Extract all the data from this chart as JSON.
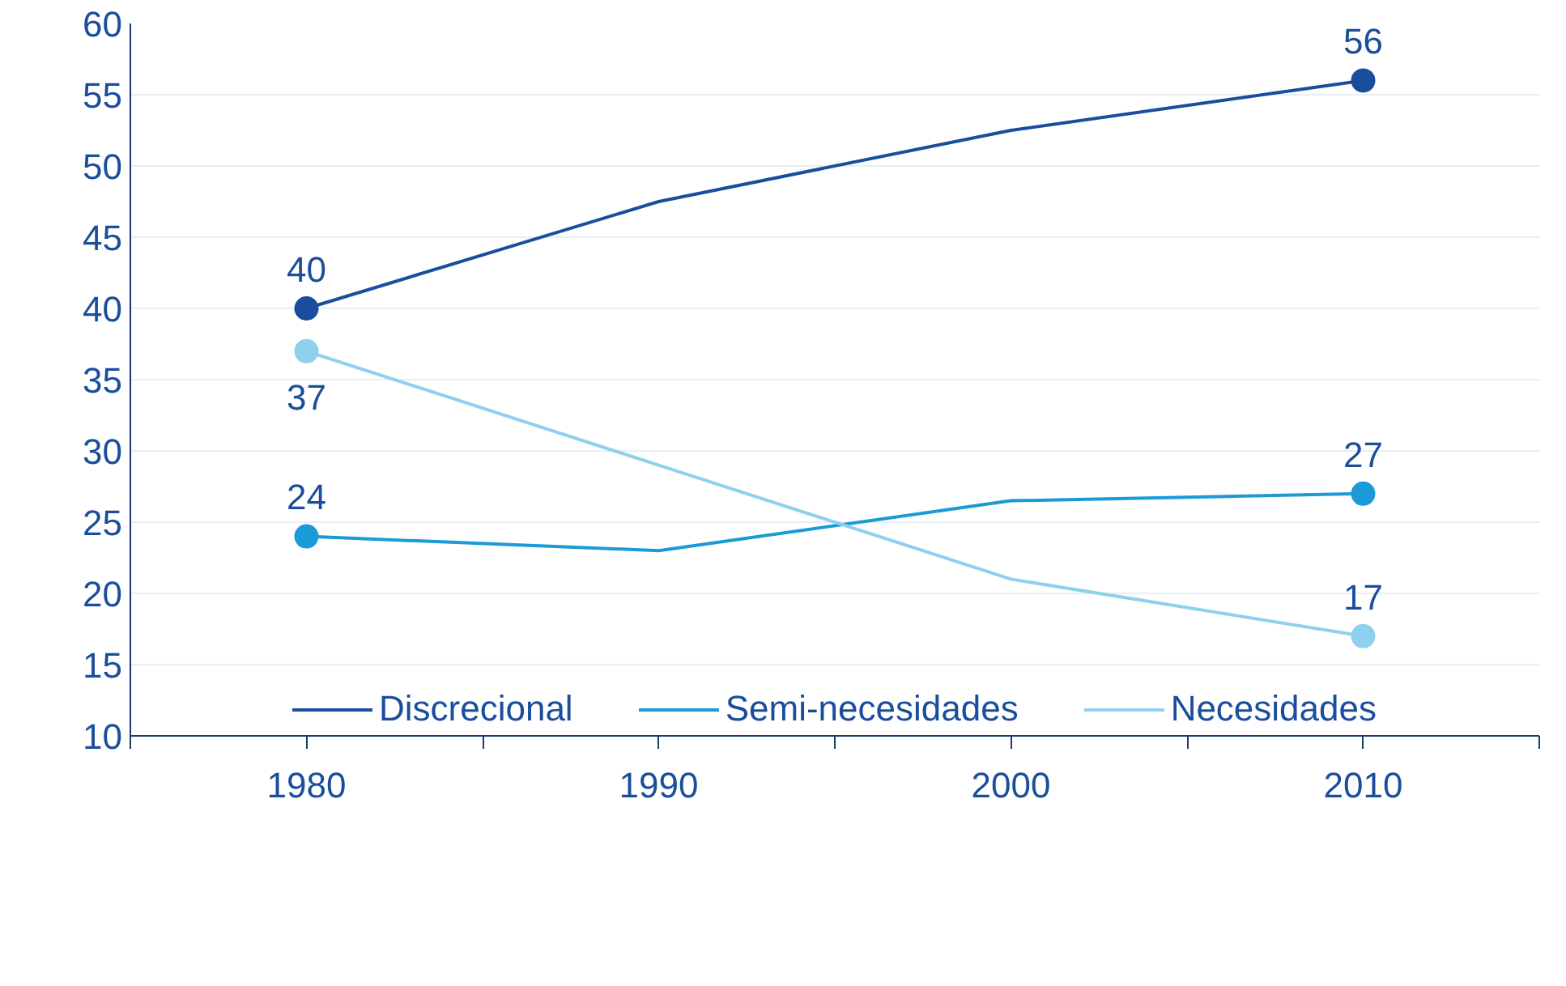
{
  "chart_data": {
    "type": "line",
    "categories": [
      "1980",
      "1990",
      "2000",
      "2010"
    ],
    "series": [
      {
        "name": "Discrecional",
        "color": "#1a4e9c",
        "values": [
          40,
          47.5,
          52.5,
          56
        ],
        "value_labels": [
          "40",
          null,
          null,
          "56"
        ]
      },
      {
        "name": "Semi-necesidades",
        "color": "#1a9ad6",
        "values": [
          24,
          23,
          26.5,
          27
        ],
        "value_labels": [
          "24",
          null,
          null,
          "27"
        ]
      },
      {
        "name": "Necesidades",
        "color": "#8fd0ef",
        "values": [
          37,
          29,
          21,
          17
        ],
        "value_labels": [
          "37",
          null,
          null,
          "17"
        ]
      }
    ],
    "ylim": [
      10,
      60
    ],
    "yticks": [
      10,
      15,
      20,
      25,
      30,
      35,
      40,
      45,
      50,
      55,
      60
    ],
    "grid": "y",
    "legend": "bottom",
    "marker": "circle",
    "line_style": "solid"
  }
}
